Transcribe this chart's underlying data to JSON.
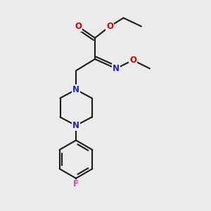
{
  "bg_color": "#ebebeb",
  "bond_color": "#1a1a1a",
  "bond_width": 1.5,
  "N_color": "#2020cc",
  "O_color": "#cc0000",
  "F_color": "#cc44cc",
  "font_size_atom": 8.5,
  "fig_width": 3.0,
  "fig_height": 3.0,
  "dpi": 100,
  "xlim": [
    0,
    10
  ],
  "ylim": [
    0,
    10
  ]
}
